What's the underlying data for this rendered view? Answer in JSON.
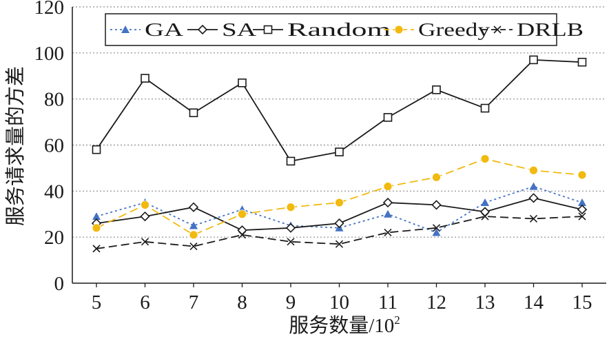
{
  "chart_data": {
    "type": "line",
    "x": [
      5,
      6,
      7,
      8,
      9,
      10,
      11,
      12,
      13,
      14,
      15
    ],
    "xlabel": "服务数量/10",
    "xlabel_sup": "2",
    "ylabel": "服务请求量的方差",
    "ylim": [
      0,
      120
    ],
    "yticks": [
      0,
      20,
      40,
      60,
      80,
      100,
      120
    ],
    "grid": "horizontal dotted",
    "legend_position": "top",
    "series": [
      {
        "name": "GA",
        "color": "#4472c4",
        "marker": "triangle",
        "line": "dotted",
        "values": [
          29,
          35,
          25,
          32,
          25,
          24,
          30,
          22,
          35,
          42,
          35
        ]
      },
      {
        "name": "SA",
        "color": "#1a1a1a",
        "marker": "diamond",
        "line": "solid",
        "values": [
          26,
          29,
          33,
          23,
          24,
          26,
          35,
          34,
          31,
          37,
          32
        ]
      },
      {
        "name": "Random",
        "color": "#1a1a1a",
        "marker": "square",
        "line": "solid",
        "values": [
          58,
          89,
          74,
          87,
          53,
          57,
          72,
          84,
          76,
          97,
          96
        ]
      },
      {
        "name": "Greedy",
        "color": "#f2b90f",
        "marker": "circle",
        "line": "dashed",
        "values": [
          24,
          34,
          21,
          30,
          33,
          35,
          42,
          46,
          54,
          49,
          47
        ]
      },
      {
        "name": "DRLB",
        "color": "#1a1a1a",
        "marker": "cross",
        "line": "dashed",
        "values": [
          15,
          18,
          16,
          21,
          18,
          17,
          22,
          24,
          29,
          28,
          29
        ]
      }
    ]
  }
}
